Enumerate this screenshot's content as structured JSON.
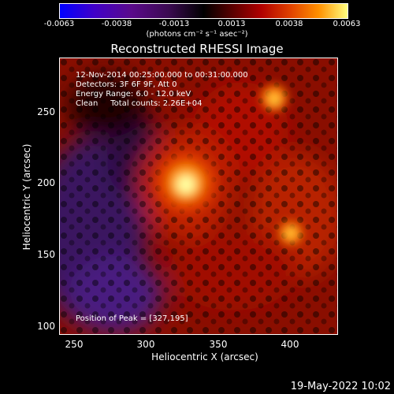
{
  "colorbar": {
    "ticks": [
      "-0.0063",
      "-0.0038",
      "-0.0013",
      "0.0013",
      "0.0038",
      "0.0063"
    ],
    "unit": "(photons cm⁻² s⁻¹ asec⁻²)"
  },
  "title": "Reconstructed RHESSI Image",
  "info": {
    "time": "12-Nov-2014 00:25:00.000 to 00:31:00.000",
    "detectors": "Detectors: 3F 6F 9F, Att 0",
    "energy": "Energy Range: 6.0 - 12.0 keV",
    "method": "Clean     Total counts: 2.26E+04",
    "peak": "Position of Peak = [327,195]"
  },
  "axes": {
    "x_label": "Heliocentric X (arcsec)",
    "y_label": "Heliocentric Y (arcsec)",
    "x_ticks": [
      "250",
      "300",
      "350",
      "400"
    ],
    "y_ticks": [
      "250",
      "200",
      "150",
      "100"
    ]
  },
  "footer": {
    "date": "19-May-2022 10:02"
  }
}
